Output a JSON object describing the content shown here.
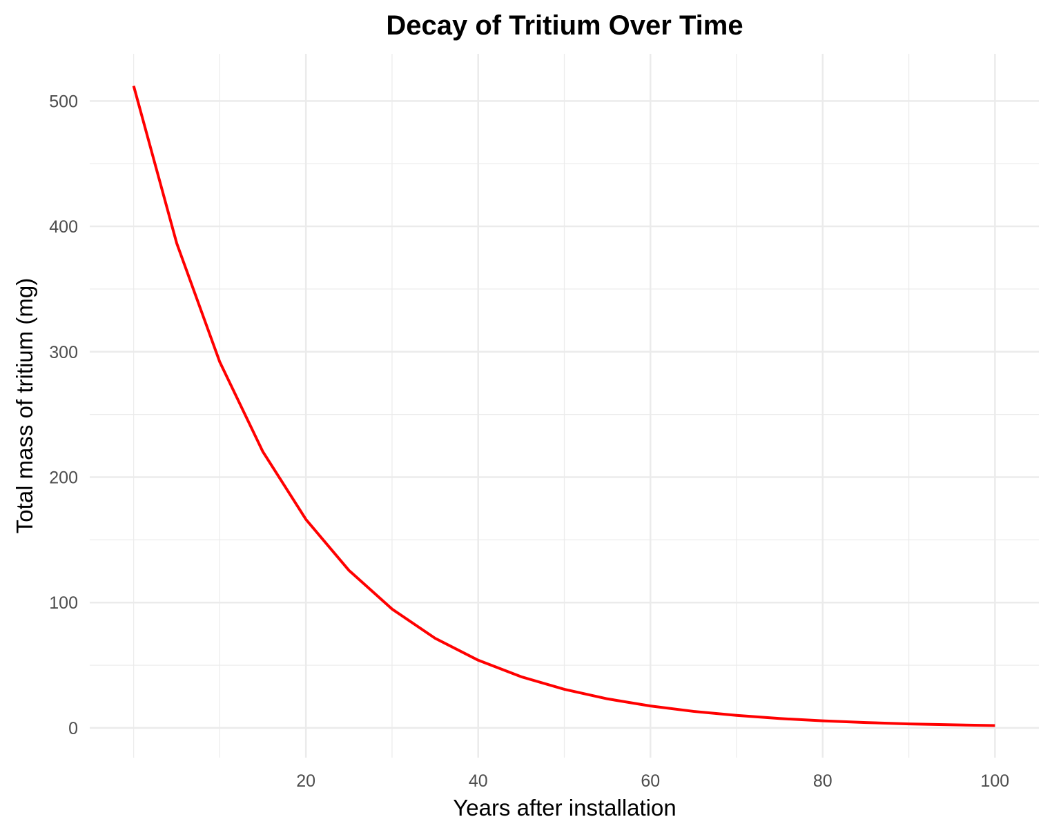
{
  "chart_data": {
    "type": "line",
    "title": "Decay of Tritium Over Time",
    "x_label": "Years after installation",
    "y_label": "Total mass of tritium (mg)",
    "x": [
      0,
      5,
      10,
      15,
      20,
      25,
      30,
      35,
      40,
      45,
      50,
      55,
      60,
      65,
      70,
      75,
      80,
      85,
      90,
      95,
      100
    ],
    "series": [
      {
        "color": "#ff0000",
        "values": [
          512,
          386.5,
          291.8,
          220.3,
          166.3,
          125.6,
          94.8,
          71.5,
          54.0,
          40.8,
          30.8,
          23.2,
          17.5,
          13.2,
          10.0,
          7.5,
          5.7,
          4.3,
          3.2,
          2.5,
          1.9
        ]
      }
    ],
    "xlim": [
      -5.1,
      105.1
    ],
    "ylim": [
      -23.7,
      537.6
    ],
    "xticks": [
      20,
      40,
      60,
      80,
      100
    ],
    "yticks": [
      0,
      100,
      200,
      300,
      400,
      500
    ],
    "xminor": [
      0,
      10,
      30,
      50,
      70,
      90
    ],
    "yminor": [
      50,
      150,
      250,
      350,
      450
    ],
    "grid": true
  }
}
